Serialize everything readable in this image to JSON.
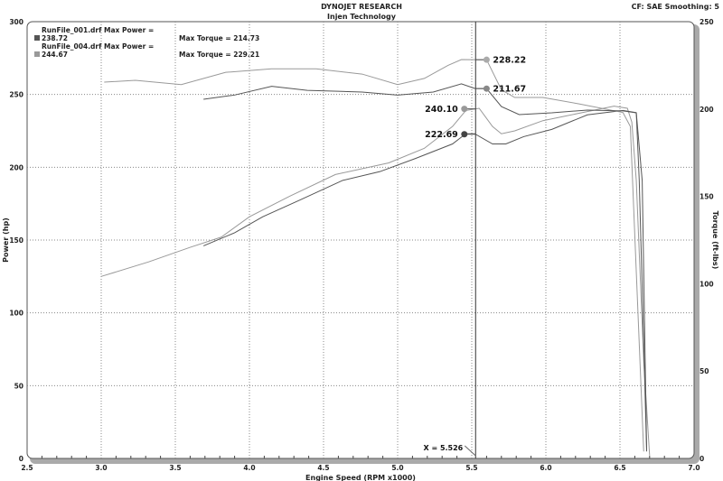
{
  "header": {
    "title": "DYNOJET RESEARCH",
    "subtitle": "Injen Technology",
    "settings": "CF: SAE  Smoothing: 5"
  },
  "chart_data": {
    "type": "line",
    "xlabel": "Engine Speed (RPM x1000)",
    "ylabel": "Power (hp)",
    "y2label": "Torque (ft-lbs)",
    "xlim": [
      2.5,
      7.0
    ],
    "ylim": [
      0,
      300
    ],
    "y2lim": [
      0,
      250
    ],
    "xticks": [
      "2.5",
      "3.0",
      "3.5",
      "4.0",
      "4.5",
      "5.0",
      "5.5",
      "6.0",
      "6.5",
      "7.0"
    ],
    "yticks": [
      "0",
      "50",
      "100",
      "150",
      "200",
      "250",
      "300"
    ],
    "y2ticks": [
      "0",
      "50",
      "100",
      "150",
      "200",
      "250"
    ],
    "grid": true,
    "legend": [
      {
        "text": "RunFile_001.drf Max Power = 238.72",
        "torque_text": "Max Torque = 214.73",
        "color": "#555555"
      },
      {
        "text": "RunFile_004.drf Max Power = 244.67",
        "torque_text": "Max Torque = 229.21",
        "color": "#999999"
      }
    ],
    "cursor": {
      "x": 5.526,
      "label": "X = 5.526"
    },
    "series": [
      {
        "run": "RunFile_004.drf",
        "quantity": "power",
        "axis": "left",
        "color": "#999999",
        "x": [
          3.0,
          3.32,
          3.6,
          3.81,
          4.0,
          4.27,
          4.58,
          4.94,
          5.18,
          5.37,
          5.46,
          5.55,
          5.64,
          5.7,
          5.79,
          5.98,
          6.22,
          6.46,
          6.55,
          6.58,
          6.61,
          6.66,
          6.7
        ],
        "y": [
          125,
          135,
          145,
          152,
          166,
          180,
          195,
          203,
          213,
          228,
          239,
          240.5,
          228,
          223,
          225,
          232,
          237,
          242,
          240.5,
          231,
          191,
          67,
          2
        ]
      },
      {
        "run": "RunFile_001.drf",
        "quantity": "power",
        "axis": "left",
        "color": "#555555",
        "x": [
          3.69,
          3.9,
          4.09,
          4.33,
          4.63,
          4.88,
          5.12,
          5.37,
          5.46,
          5.52,
          5.64,
          5.73,
          5.85,
          6.04,
          6.28,
          6.52,
          6.61,
          6.63,
          6.68
        ],
        "y": [
          146,
          155,
          166,
          177,
          191,
          197,
          206,
          216,
          223,
          223,
          216,
          216,
          221,
          226,
          236,
          239,
          237.5,
          191,
          5
        ]
      },
      {
        "run": "RunFile_004.drf",
        "quantity": "torque",
        "axis": "right",
        "color": "#999999",
        "x": [
          3.02,
          3.23,
          3.54,
          3.84,
          4.15,
          4.45,
          4.76,
          5.0,
          5.18,
          5.34,
          5.43,
          5.6,
          5.7,
          5.79,
          5.98,
          6.22,
          6.52,
          6.57,
          6.61,
          6.66
        ],
        "y": [
          215.4,
          216.4,
          214,
          221,
          223,
          223,
          220,
          214,
          217.5,
          225,
          228.3,
          228.2,
          211,
          206.6,
          206.6,
          203,
          198,
          190,
          107,
          4
        ]
      },
      {
        "run": "RunFile_001.drf",
        "quantity": "torque",
        "axis": "right",
        "color": "#555555",
        "x": [
          3.69,
          3.9,
          4.15,
          4.39,
          4.76,
          5.0,
          5.24,
          5.43,
          5.52,
          5.6,
          5.7,
          5.82,
          6.04,
          6.28,
          6.52,
          6.61,
          6.65,
          6.68
        ],
        "y": [
          205.6,
          208,
          213,
          210.7,
          209.7,
          208,
          209.7,
          214.4,
          211.8,
          211.7,
          201.4,
          196.8,
          197.8,
          199.4,
          198.9,
          197.8,
          159,
          4
        ]
      }
    ],
    "markers": [
      {
        "x": 5.6,
        "y": 228.22,
        "axis": "right",
        "label": "228.22",
        "color": "#aaaaaa",
        "side": "right"
      },
      {
        "x": 5.6,
        "y": 211.67,
        "axis": "right",
        "label": "211.67",
        "color": "#888888",
        "side": "right"
      },
      {
        "x": 5.45,
        "y": 240.1,
        "axis": "left",
        "label": "240.10",
        "color": "#999999",
        "side": "left"
      },
      {
        "x": 5.45,
        "y": 222.69,
        "axis": "left",
        "label": "222.69",
        "color": "#444444",
        "side": "left"
      }
    ]
  }
}
